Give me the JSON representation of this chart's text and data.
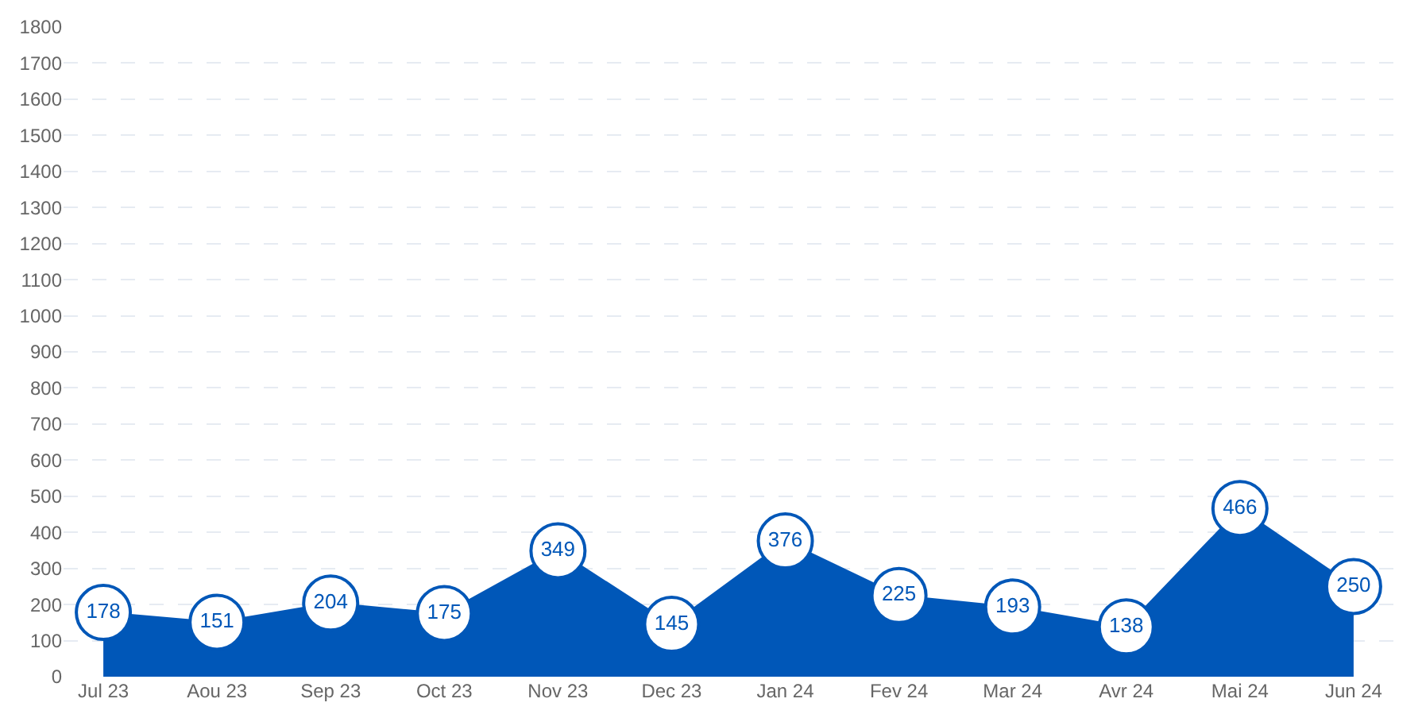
{
  "chart_data": {
    "type": "area",
    "categories": [
      "Jul 23",
      "Aou 23",
      "Sep 23",
      "Oct 23",
      "Nov 23",
      "Dec 23",
      "Jan 24",
      "Fev 24",
      "Mar 24",
      "Avr 24",
      "Mai 24",
      "Jun 24"
    ],
    "series": [
      {
        "color": "#0057b8",
        "values": [
          178,
          151,
          204,
          175,
          349,
          145,
          376,
          225,
          193,
          138,
          466,
          250
        ]
      }
    ],
    "ylim": [
      0,
      1800
    ],
    "yticks": [
      0,
      100,
      200,
      300,
      400,
      500,
      600,
      700,
      800,
      900,
      1000,
      1100,
      1200,
      1300,
      1400,
      1500,
      1600,
      1700,
      1800
    ],
    "grid": "y",
    "data_labels": true,
    "marker": "circle"
  }
}
